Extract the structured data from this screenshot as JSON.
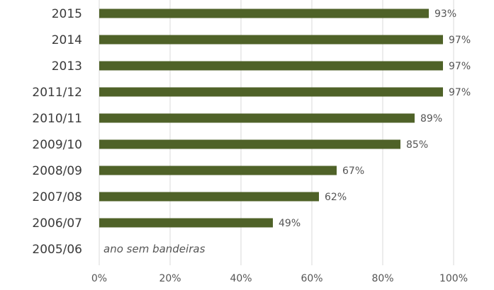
{
  "chart_data": {
    "type": "bar",
    "orientation": "horizontal",
    "categories": [
      "2015",
      "2014",
      "2013",
      "2011/12",
      "2010/11",
      "2009/10",
      "2008/09",
      "2007/08",
      "2006/07",
      "2005/06"
    ],
    "values": [
      93,
      97,
      97,
      97,
      89,
      85,
      67,
      62,
      49,
      null
    ],
    "value_labels": [
      "93%",
      "97%",
      "97%",
      "97%",
      "89%",
      "85%",
      "67%",
      "62%",
      "49%",
      ""
    ],
    "annotation": {
      "category": "2005/06",
      "text": "ano sem bandeiras"
    },
    "xlim": [
      0,
      100
    ],
    "x_ticks": [
      "0%",
      "20%",
      "40%",
      "60%",
      "80%",
      "100%"
    ],
    "grid": true,
    "colors": {
      "bar": "#4f6228",
      "grid": "#d9d9d9"
    }
  }
}
